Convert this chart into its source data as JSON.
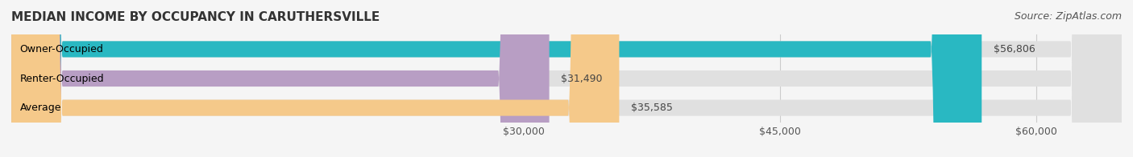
{
  "title": "MEDIAN INCOME BY OCCUPANCY IN CARUTHERSVILLE",
  "source": "Source: ZipAtlas.com",
  "categories": [
    "Owner-Occupied",
    "Renter-Occupied",
    "Average"
  ],
  "values": [
    56806,
    31490,
    35585
  ],
  "bar_colors": [
    "#29b8c2",
    "#b89ec4",
    "#f5c98a"
  ],
  "bar_bg_color": "#e8e8e8",
  "value_labels": [
    "$56,806",
    "$31,490",
    "$35,585"
  ],
  "xlim": [
    0,
    65000
  ],
  "xticks": [
    30000,
    45000,
    60000
  ],
  "xtick_labels": [
    "$30,000",
    "$45,000",
    "$60,000"
  ],
  "title_fontsize": 11,
  "source_fontsize": 9,
  "label_fontsize": 9,
  "bar_height": 0.55,
  "background_color": "#f5f5f5",
  "bar_bg_alpha": 1.0
}
